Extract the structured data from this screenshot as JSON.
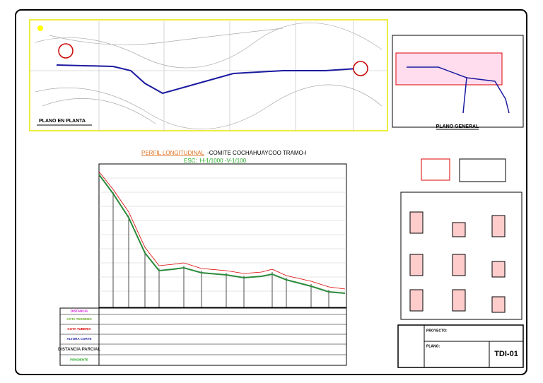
{
  "plan": {
    "title": "PLANO EN PLANTA"
  },
  "general": {
    "title": "PLANO GENERAL"
  },
  "profile": {
    "title_highlight": "PERFIL LONGITUDINAL",
    "title": "-COMITE COCHAHUAYCOO TRAMO-I",
    "scale_label": "ESC:",
    "scale": "H-1/1000 -V-1/100"
  },
  "table_rows": [
    "DISTANCIA",
    "COTA TERRENO",
    "COTA TUBERIA",
    "ALTURA CORTE",
    "DISTANCIA PARCIAL",
    "PENDIENTE"
  ],
  "title_block": {
    "project_label": "PROYECTO:",
    "plan_label": "PLANO:",
    "sheet": "TDI-01"
  }
}
